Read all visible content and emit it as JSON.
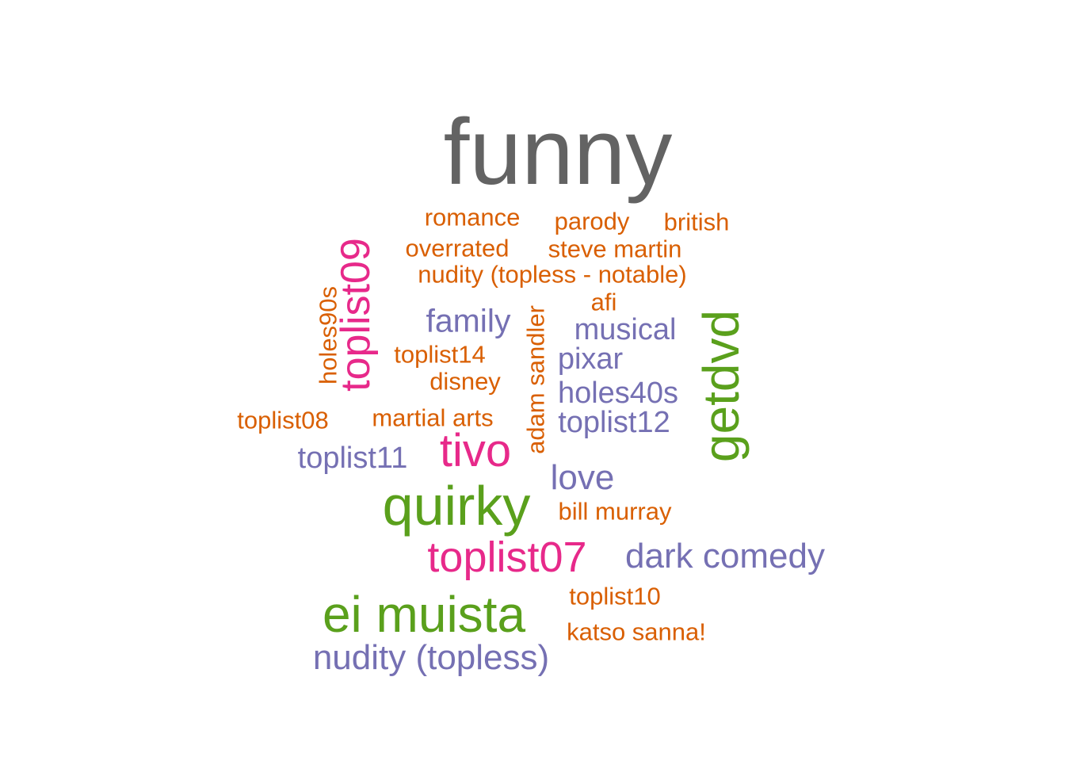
{
  "colors": {
    "gray": "#636363",
    "orange": "#d95f02",
    "purple": "#7570b3",
    "green": "#5aa01c",
    "pink": "#e7298a"
  },
  "words": [
    {
      "id": "funny",
      "text": "funny",
      "color": "gray",
      "rotated": false
    },
    {
      "id": "romance",
      "text": "romance",
      "color": "orange",
      "rotated": false
    },
    {
      "id": "parody",
      "text": "parody",
      "color": "orange",
      "rotated": false
    },
    {
      "id": "british",
      "text": "british",
      "color": "orange",
      "rotated": false
    },
    {
      "id": "overrated",
      "text": "overrated",
      "color": "orange",
      "rotated": false
    },
    {
      "id": "stevemartin",
      "text": "steve martin",
      "color": "orange",
      "rotated": false
    },
    {
      "id": "nudnot",
      "text": "nudity (topless - notable)",
      "color": "orange",
      "rotated": false
    },
    {
      "id": "afi",
      "text": "afi",
      "color": "orange",
      "rotated": false
    },
    {
      "id": "family",
      "text": "family",
      "color": "purple",
      "rotated": false
    },
    {
      "id": "musical",
      "text": "musical",
      "color": "purple",
      "rotated": false
    },
    {
      "id": "toplist14",
      "text": "toplist14",
      "color": "orange",
      "rotated": false
    },
    {
      "id": "pixar",
      "text": "pixar",
      "color": "purple",
      "rotated": false
    },
    {
      "id": "disney",
      "text": "disney",
      "color": "orange",
      "rotated": false
    },
    {
      "id": "holes40s",
      "text": "holes40s",
      "color": "purple",
      "rotated": false
    },
    {
      "id": "toplist08",
      "text": "toplist08",
      "color": "orange",
      "rotated": false
    },
    {
      "id": "martialarts",
      "text": "martial arts",
      "color": "orange",
      "rotated": false
    },
    {
      "id": "toplist12",
      "text": "toplist12",
      "color": "purple",
      "rotated": false
    },
    {
      "id": "tivo",
      "text": "tivo",
      "color": "pink",
      "rotated": false
    },
    {
      "id": "toplist11",
      "text": "toplist11",
      "color": "purple",
      "rotated": false
    },
    {
      "id": "love",
      "text": "love",
      "color": "purple",
      "rotated": false
    },
    {
      "id": "quirky",
      "text": "quirky",
      "color": "green",
      "rotated": false
    },
    {
      "id": "billmurray",
      "text": "bill murray",
      "color": "orange",
      "rotated": false
    },
    {
      "id": "toplist07",
      "text": "toplist07",
      "color": "pink",
      "rotated": false
    },
    {
      "id": "darkcomedy",
      "text": "dark comedy",
      "color": "purple",
      "rotated": false
    },
    {
      "id": "toplist10",
      "text": "toplist10",
      "color": "orange",
      "rotated": false
    },
    {
      "id": "eimuista",
      "text": "ei muista",
      "color": "green",
      "rotated": false
    },
    {
      "id": "katsosanna",
      "text": "katso sanna!",
      "color": "orange",
      "rotated": false
    },
    {
      "id": "nudtop",
      "text": "nudity (topless)",
      "color": "purple",
      "rotated": false
    },
    {
      "id": "holes90s",
      "text": "holes90s",
      "color": "orange",
      "rotated": true
    },
    {
      "id": "toplist09",
      "text": "toplist09",
      "color": "pink",
      "rotated": true
    },
    {
      "id": "adamsandler",
      "text": "adam sandler",
      "color": "orange",
      "rotated": true
    },
    {
      "id": "getdvd",
      "text": "getdvd",
      "color": "green",
      "rotated": true
    }
  ]
}
